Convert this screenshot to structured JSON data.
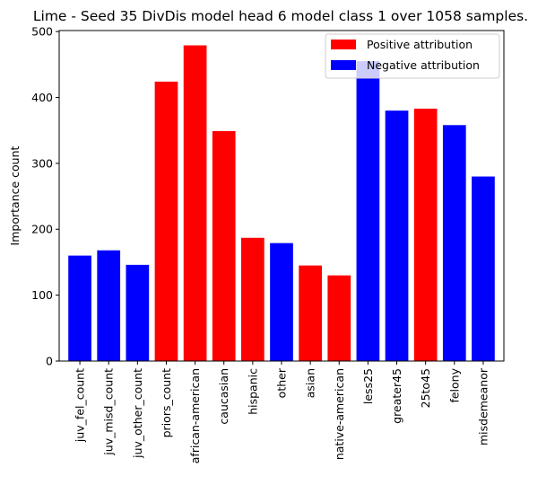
{
  "chart_data": {
    "type": "bar",
    "title": "Lime - Seed 35 DivDis model head 6 model class 1 over 1058 samples.",
    "xlabel": "",
    "ylabel": "Importance count",
    "ylim": [
      0,
      500
    ],
    "yticks": [
      0,
      100,
      200,
      300,
      400,
      500
    ],
    "grid": false,
    "legend_position": "top-right",
    "categories": [
      "juv_fel_count",
      "juv_misd_count",
      "juv_other_count",
      "priors_count",
      "african-american",
      "caucasian",
      "hispanic",
      "other",
      "asian",
      "native-american",
      "less25",
      "greater45",
      "25to45",
      "felony",
      "misdemeanor"
    ],
    "values": [
      160,
      168,
      146,
      424,
      479,
      349,
      187,
      179,
      145,
      130,
      455,
      380,
      383,
      358,
      280
    ],
    "attribution": [
      "negative",
      "negative",
      "negative",
      "positive",
      "positive",
      "positive",
      "positive",
      "negative",
      "positive",
      "positive",
      "negative",
      "negative",
      "positive",
      "negative",
      "negative"
    ],
    "legend": [
      {
        "label": "Positive attribution",
        "color": "#ff0000"
      },
      {
        "label": "Negative attribution",
        "color": "#0000ff"
      }
    ],
    "colors": {
      "positive": "#ff0000",
      "negative": "#0000ff"
    }
  }
}
